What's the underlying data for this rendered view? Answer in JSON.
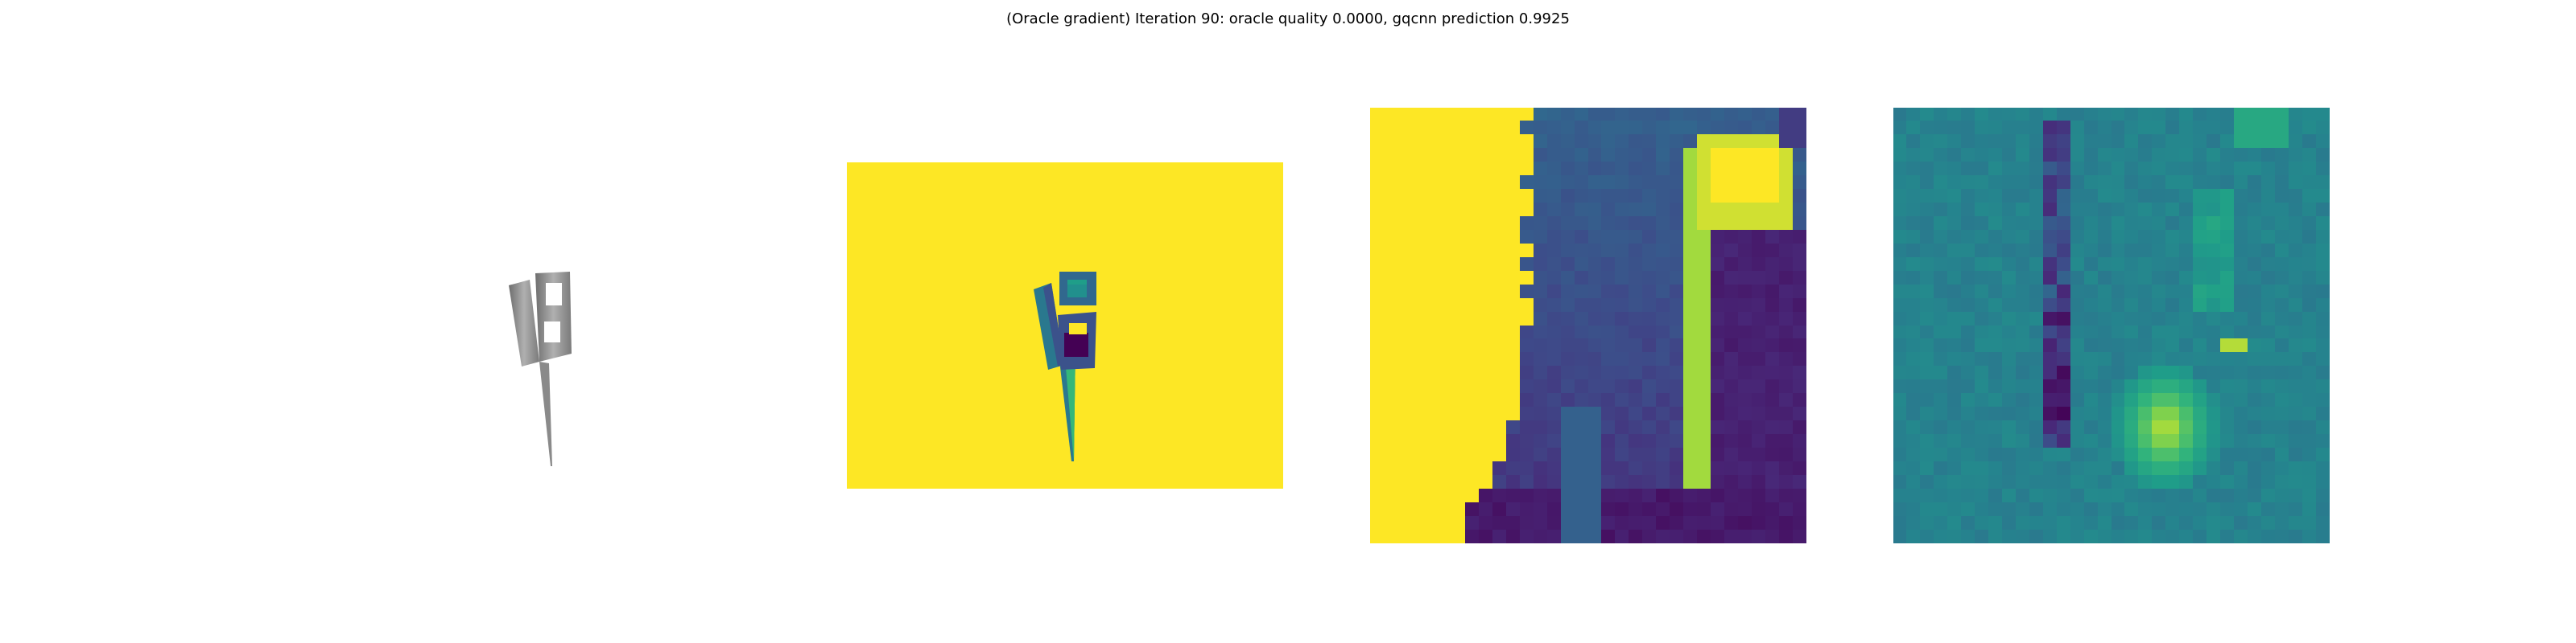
{
  "figure": {
    "title": "(Oracle gradient) Iteration 90: oracle quality 0.0000, gqcnn prediction 0.9925"
  },
  "colors": {
    "viridis_yellow": "#fde725",
    "viridis_purple": "#440154",
    "viridis_teal": "#21908d",
    "object_gray": "#8a8a8a"
  },
  "panels": [
    {
      "name": "rendered-object",
      "colormap": "gray"
    },
    {
      "name": "depth-image",
      "colormap": "viridis"
    },
    {
      "name": "depth-crop",
      "colormap": "viridis"
    },
    {
      "name": "oracle-gradient",
      "colormap": "viridis"
    }
  ]
}
